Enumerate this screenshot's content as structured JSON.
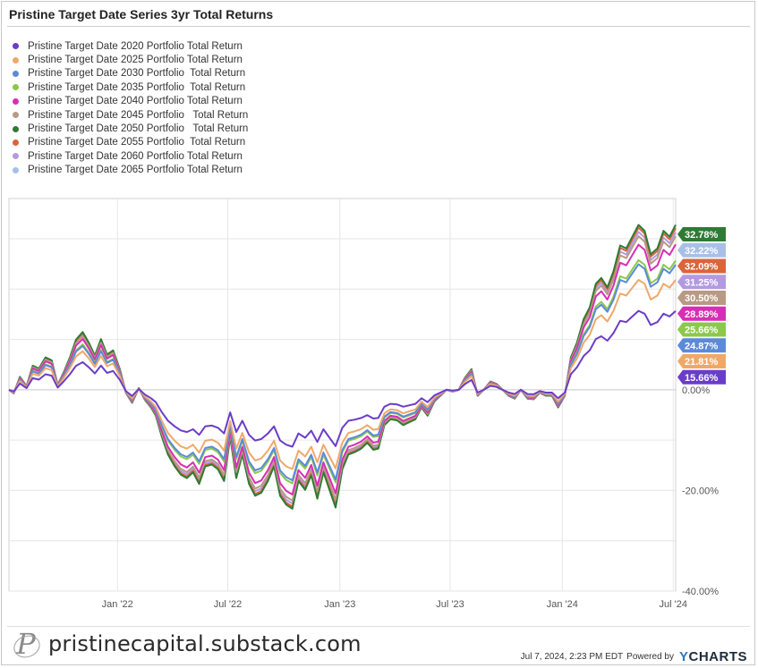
{
  "chart_data": {
    "type": "line",
    "title": "Pristine Target Date Series 3yr Total Returns",
    "ylabel": "",
    "xlabel": "",
    "x_ticks": [
      "Jan '22",
      "Jul '22",
      "Jan '23",
      "Jul '23",
      "Jan '24",
      "Jul '24"
    ],
    "y_ticks": [
      {
        "value": 0,
        "label": "0.00%"
      },
      {
        "value": -20,
        "label": "-20.00%"
      },
      {
        "value": -40,
        "label": "-40.00%"
      }
    ],
    "xlim": [
      "2021-07-07",
      "2024-07-05"
    ],
    "ylim": [
      -40,
      38
    ],
    "grid": true,
    "legend_position": "top-left",
    "base": {
      "x": [
        "2021-07-07",
        "2021-07-15",
        "2021-07-25",
        "2021-08-05",
        "2021-08-15",
        "2021-08-25",
        "2021-09-05",
        "2021-09-15",
        "2021-09-25",
        "2021-10-05",
        "2021-10-15",
        "2021-10-25",
        "2021-11-05",
        "2021-11-15",
        "2021-11-25",
        "2021-12-05",
        "2021-12-15",
        "2021-12-25",
        "2022-01-05",
        "2022-01-15",
        "2022-01-25",
        "2022-02-05",
        "2022-02-15",
        "2022-02-25",
        "2022-03-05",
        "2022-03-15",
        "2022-03-25",
        "2022-04-05",
        "2022-04-15",
        "2022-04-25",
        "2022-05-05",
        "2022-05-15",
        "2022-05-25",
        "2022-06-05",
        "2022-06-15",
        "2022-06-25",
        "2022-07-05",
        "2022-07-15",
        "2022-07-25",
        "2022-08-05",
        "2022-08-15",
        "2022-08-25",
        "2022-09-05",
        "2022-09-15",
        "2022-09-25",
        "2022-10-05",
        "2022-10-15",
        "2022-10-25",
        "2022-11-05",
        "2022-11-15",
        "2022-11-25",
        "2022-12-05",
        "2022-12-15",
        "2022-12-25",
        "2023-01-05",
        "2023-01-15",
        "2023-01-25",
        "2023-02-05",
        "2023-02-15",
        "2023-02-25",
        "2023-03-05",
        "2023-03-15",
        "2023-03-25",
        "2023-04-05",
        "2023-04-15",
        "2023-04-25",
        "2023-05-05",
        "2023-05-15",
        "2023-05-25",
        "2023-06-05",
        "2023-06-15",
        "2023-06-25",
        "2023-07-05",
        "2023-07-15",
        "2023-07-25",
        "2023-08-05",
        "2023-08-15",
        "2023-08-25",
        "2023-09-05",
        "2023-09-15",
        "2023-09-25",
        "2023-10-05",
        "2023-10-15",
        "2023-10-25",
        "2023-11-05",
        "2023-11-15",
        "2023-11-25",
        "2023-12-05",
        "2023-12-15",
        "2023-12-25",
        "2024-01-05",
        "2024-01-15",
        "2024-01-25",
        "2024-02-05",
        "2024-02-15",
        "2024-02-25",
        "2024-03-05",
        "2024-03-15",
        "2024-03-25",
        "2024-04-05",
        "2024-04-15",
        "2024-04-25",
        "2024-05-05",
        "2024-05-15",
        "2024-05-25",
        "2024-06-05",
        "2024-06-15",
        "2024-06-25",
        "2024-07-05"
      ],
      "y": [
        0.0,
        -0.6,
        2.2,
        0.6,
        4.1,
        3.6,
        5.5,
        5.0,
        0.8,
        3.0,
        5.5,
        8.5,
        9.8,
        8.0,
        5.8,
        8.6,
        6.0,
        6.7,
        3.5,
        -0.5,
        -2.2,
        0.3,
        -1.7,
        -3.0,
        -4.4,
        -8.0,
        -11.0,
        -13.0,
        -14.4,
        -15.0,
        -14.0,
        -16.0,
        -13.0,
        -12.7,
        -13.5,
        -15.5,
        -8.0,
        -15.0,
        -11.0,
        -16.0,
        -18.0,
        -17.5,
        -15.5,
        -13.0,
        -18.0,
        -19.5,
        -20.2,
        -15.5,
        -17.0,
        -14.5,
        -18.5,
        -14.0,
        -17.0,
        -20.0,
        -13.5,
        -11.0,
        -10.6,
        -10.0,
        -9.0,
        -10.2,
        -10.0,
        -6.0,
        -5.0,
        -5.2,
        -6.0,
        -5.5,
        -5.0,
        -3.0,
        -4.4,
        -2.0,
        -1.0,
        0.0,
        -0.3,
        0.0,
        2.0,
        3.5,
        -1.0,
        0.0,
        1.4,
        1.0,
        0.0,
        -1.0,
        -1.5,
        0.0,
        -1.5,
        -1.6,
        -0.5,
        -1.0,
        -1.0,
        -3.0,
        -1.0,
        5.5,
        8.0,
        12.0,
        14.0,
        18.0,
        19.0,
        17.4,
        20.1,
        24.5,
        24.0,
        26.0,
        28.0,
        27.0,
        23.0,
        24.0,
        27.0,
        26.0,
        28.0
      ]
    },
    "series": [
      {
        "name": "Pristine Target Date 2020 Portfolio Total Return",
        "color": "#6a3dc8",
        "scale": 0.56,
        "final": 15.66,
        "final_label": "15.66%"
      },
      {
        "name": "Pristine Target Date 2025 Portfolio Total Return",
        "color": "#f0a868",
        "scale": 0.78,
        "final": 21.81,
        "final_label": "21.81%"
      },
      {
        "name": "Pristine Target Date 2030 Portfolio  Total Return",
        "color": "#5b8ad8",
        "scale": 0.89,
        "final": 24.87,
        "final_label": "24.87%"
      },
      {
        "name": "Pristine Target Date 2035 Portfolio  Total Return",
        "color": "#8cc84b",
        "scale": 0.92,
        "final": 25.66,
        "final_label": "25.66%"
      },
      {
        "name": "Pristine Target Date 2040 Portfolio Total Return",
        "color": "#d62fb5",
        "scale": 1.03,
        "final": 28.89,
        "final_label": "28.89%"
      },
      {
        "name": "Pristine Target Date 2045 Portfolio   Total Return",
        "color": "#b89a84",
        "scale": 1.09,
        "final": 30.5,
        "final_label": "30.50%"
      },
      {
        "name": "Pristine Target Date 2050 Portfolio   Total Return",
        "color": "#2f7a35",
        "scale": 1.17,
        "final": 32.78,
        "final_label": "32.78%"
      },
      {
        "name": "Pristine Target Date 2055 Portfolio  Total Return",
        "color": "#d9653a",
        "scale": 1.15,
        "final": 32.09,
        "final_label": "32.09%"
      },
      {
        "name": "Pristine Target Date 2060 Portfolio Total Return",
        "color": "#b39ae0",
        "scale": 1.12,
        "final": 31.25,
        "final_label": "31.25%"
      },
      {
        "name": "Pristine Target Date 2065 Portfolio Total Return",
        "color": "#a8c0e8",
        "scale": 1.15,
        "final": 32.22,
        "final_label": "32.22%"
      }
    ],
    "label_order": [
      6,
      9,
      7,
      8,
      5,
      4,
      3,
      2,
      1,
      0
    ]
  },
  "footer": {
    "brand": "pristinecapital.substack.com",
    "timestamp": "Jul 7, 2024, 2:23 PM EDT",
    "powered_by": "Powered by",
    "ycharts_y": "Y",
    "ycharts_rest": "CHARTS"
  }
}
